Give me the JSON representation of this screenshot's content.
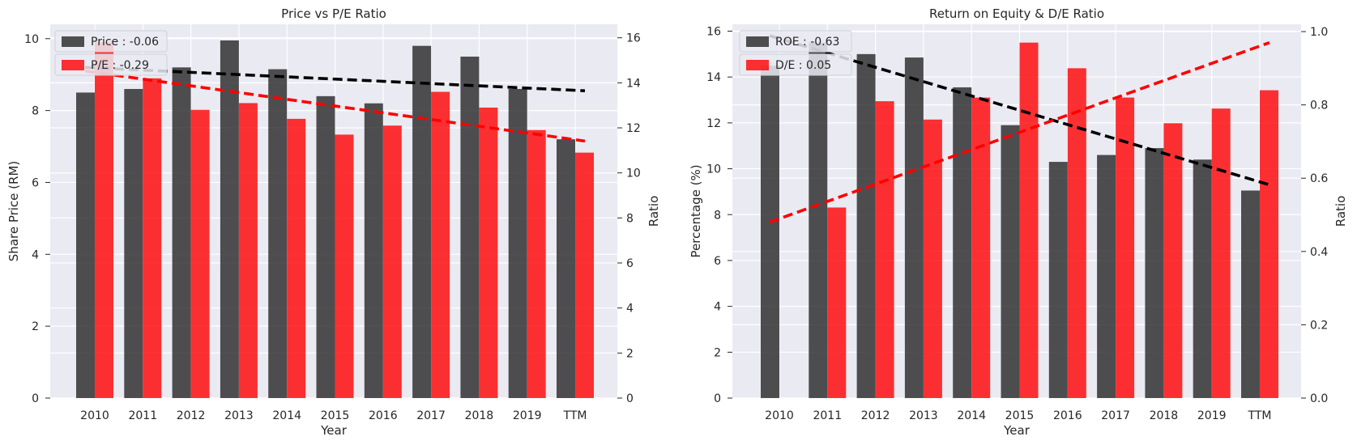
{
  "colors": {
    "background": "#eaeaf2",
    "grid": "#ffffff",
    "dark_bar": "#262626",
    "red_bar": "#ff0000",
    "dark_trend": "#000000",
    "red_trend": "#ff0000"
  },
  "chart_data": [
    {
      "type": "bar",
      "title": "Price vs P/E Ratio",
      "xlabel": "Year",
      "ylabel": "Share Price (RM)",
      "y2label": "Ratio",
      "categories": [
        "2010",
        "2011",
        "2012",
        "2013",
        "2014",
        "2015",
        "2016",
        "2017",
        "2018",
        "2019",
        "TTM"
      ],
      "ylim": [
        0,
        10.4
      ],
      "y2lim": [
        0,
        16.6
      ],
      "yticks": [
        "0",
        "2",
        "4",
        "6",
        "8",
        "10"
      ],
      "y2ticks": [
        "0",
        "2",
        "4",
        "6",
        "8",
        "10",
        "12",
        "14",
        "16"
      ],
      "series": [
        {
          "name": "Price : -0.06",
          "axis": "left",
          "color": "dark",
          "values": [
            8.5,
            8.6,
            9.2,
            9.95,
            9.15,
            8.4,
            8.2,
            9.8,
            9.5,
            8.6,
            7.2
          ]
        },
        {
          "name": "P/E : -0.29",
          "axis": "right",
          "color": "red",
          "values": [
            15.8,
            14.2,
            12.8,
            13.1,
            12.4,
            11.7,
            12.1,
            13.6,
            12.9,
            11.9,
            10.9
          ]
        }
      ],
      "trend_lines": [
        {
          "axis": "left",
          "color": "dark",
          "start": 9.2,
          "end": 8.55
        },
        {
          "axis": "left",
          "color": "red",
          "start": 9.1,
          "end": 7.15
        }
      ],
      "legend_position": "top-left"
    },
    {
      "type": "bar",
      "title": "Return on Equity & D/E Ratio",
      "xlabel": "Year",
      "ylabel": "Percentage (%)",
      "y2label": "Ratio",
      "categories": [
        "2010",
        "2011",
        "2012",
        "2013",
        "2014",
        "2015",
        "2016",
        "2017",
        "2018",
        "2019",
        "TTM"
      ],
      "ylim": [
        0,
        16.3
      ],
      "y2lim": [
        0,
        1.02
      ],
      "yticks": [
        "0",
        "2",
        "4",
        "6",
        "8",
        "10",
        "12",
        "14",
        "16"
      ],
      "y2ticks": [
        "0.0",
        "0.2",
        "0.4",
        "0.6",
        "0.8",
        "1.0"
      ],
      "series": [
        {
          "name": "ROE : -0.63",
          "axis": "left",
          "color": "dark",
          "values": [
            14.5,
            15.5,
            15.0,
            14.85,
            13.55,
            11.9,
            10.3,
            10.6,
            10.9,
            10.4,
            9.05
          ]
        },
        {
          "name": "D/E : 0.05",
          "axis": "right",
          "color": "red",
          "values": [
            0.0,
            0.52,
            0.81,
            0.76,
            0.82,
            0.97,
            0.9,
            0.82,
            0.75,
            0.79,
            0.84
          ]
        }
      ],
      "trend_lines": [
        {
          "axis": "left",
          "color": "dark",
          "start": 15.8,
          "end": 9.3
        },
        {
          "axis": "right",
          "color": "red",
          "start": 0.48,
          "end": 0.97
        }
      ],
      "legend_position": "top-left"
    }
  ]
}
